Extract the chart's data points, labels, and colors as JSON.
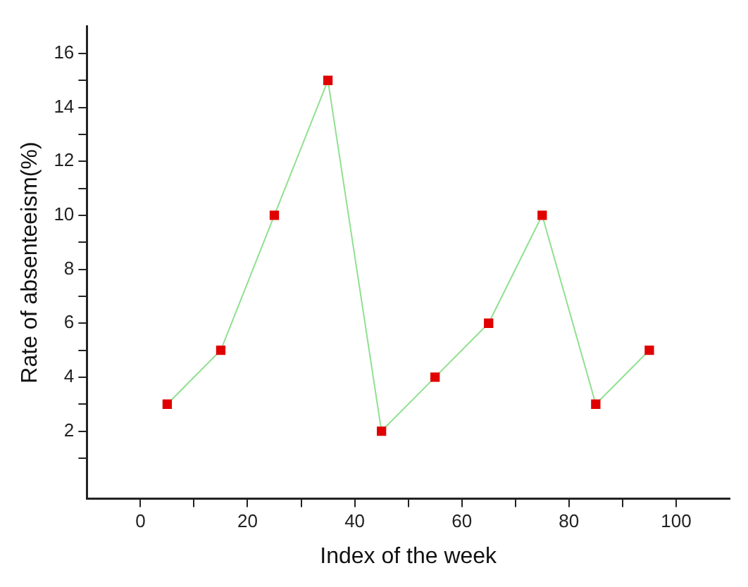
{
  "chart_data": {
    "type": "line",
    "xlabel": "Index of the week",
    "ylabel": "Rate of absenteeism(%)",
    "x": [
      5,
      15,
      25,
      35,
      45,
      55,
      65,
      75,
      85,
      95
    ],
    "series": [
      {
        "color": "#e00000",
        "values": [
          3,
          5,
          10,
          15,
          2,
          4,
          6,
          10,
          3,
          5
        ]
      }
    ],
    "xlim": [
      -10,
      110
    ],
    "ylim": [
      -0.5,
      17
    ],
    "xticks": [
      0,
      {
        "value": 10,
        "label": null
      },
      20,
      {
        "value": 30,
        "label": null
      },
      40,
      {
        "value": 50,
        "label": null
      },
      60,
      {
        "value": 70,
        "label": null
      },
      80,
      {
        "value": 90,
        "label": null
      },
      100
    ],
    "yticks": [
      {
        "value": 1,
        "label": null
      },
      2,
      {
        "value": 3,
        "label": null
      },
      4,
      {
        "value": 5,
        "label": null
      },
      6,
      {
        "value": 7,
        "label": null
      },
      8,
      {
        "value": 9,
        "label": null
      },
      10,
      {
        "value": 11,
        "label": null
      },
      12,
      {
        "value": 13,
        "label": null
      },
      14,
      {
        "value": 15,
        "label": null
      },
      16
    ],
    "marker": "square",
    "line_style": "solid",
    "grid": false,
    "legend": false
  }
}
